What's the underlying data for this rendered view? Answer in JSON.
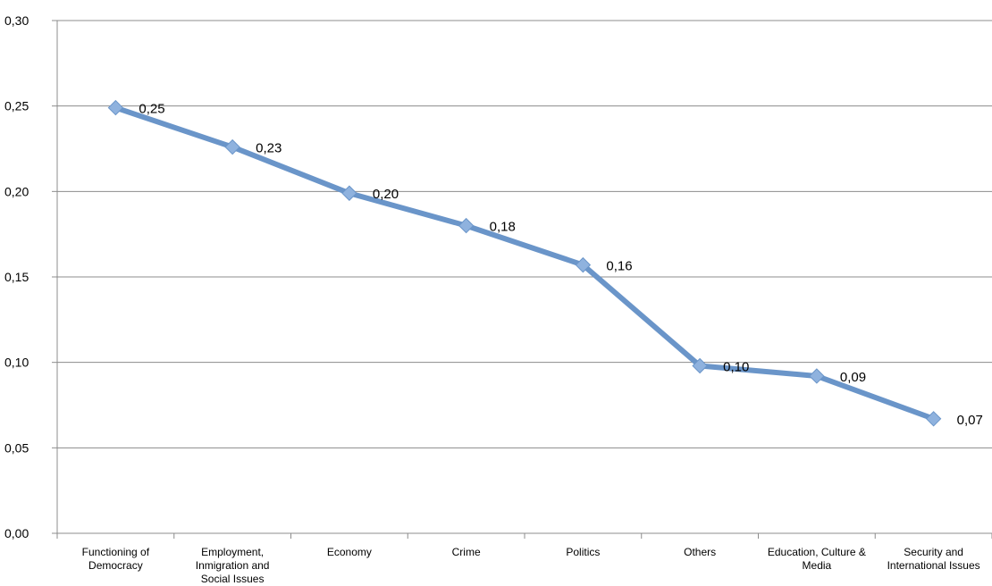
{
  "chart_data": {
    "type": "line",
    "title": "",
    "xlabel": "",
    "ylabel": "",
    "ylim": [
      0,
      0.3
    ],
    "yticks": [
      "0,00",
      "0,05",
      "0,10",
      "0,15",
      "0,20",
      "0,25",
      "0,30"
    ],
    "grid": true,
    "legend": "none",
    "categories": [
      [
        "Functioning of",
        "Democracy"
      ],
      [
        "Employment,",
        "Inmigration and",
        "Social Issues"
      ],
      [
        "Economy"
      ],
      [
        "Crime"
      ],
      [
        "Politics"
      ],
      [
        "Others"
      ],
      [
        "Education, Culture &",
        "Media"
      ],
      [
        "Security and",
        "International Issues"
      ]
    ],
    "series": [
      {
        "values": [
          0.249,
          0.226,
          0.199,
          0.18,
          0.157,
          0.098,
          0.092,
          0.067
        ],
        "labels": [
          "0,25",
          "0,23",
          "0,20",
          "0,18",
          "0,16",
          "0,10",
          "0,09",
          "0,07"
        ],
        "color": "#6a95c9",
        "marker_color": "#8fb2de"
      }
    ]
  }
}
